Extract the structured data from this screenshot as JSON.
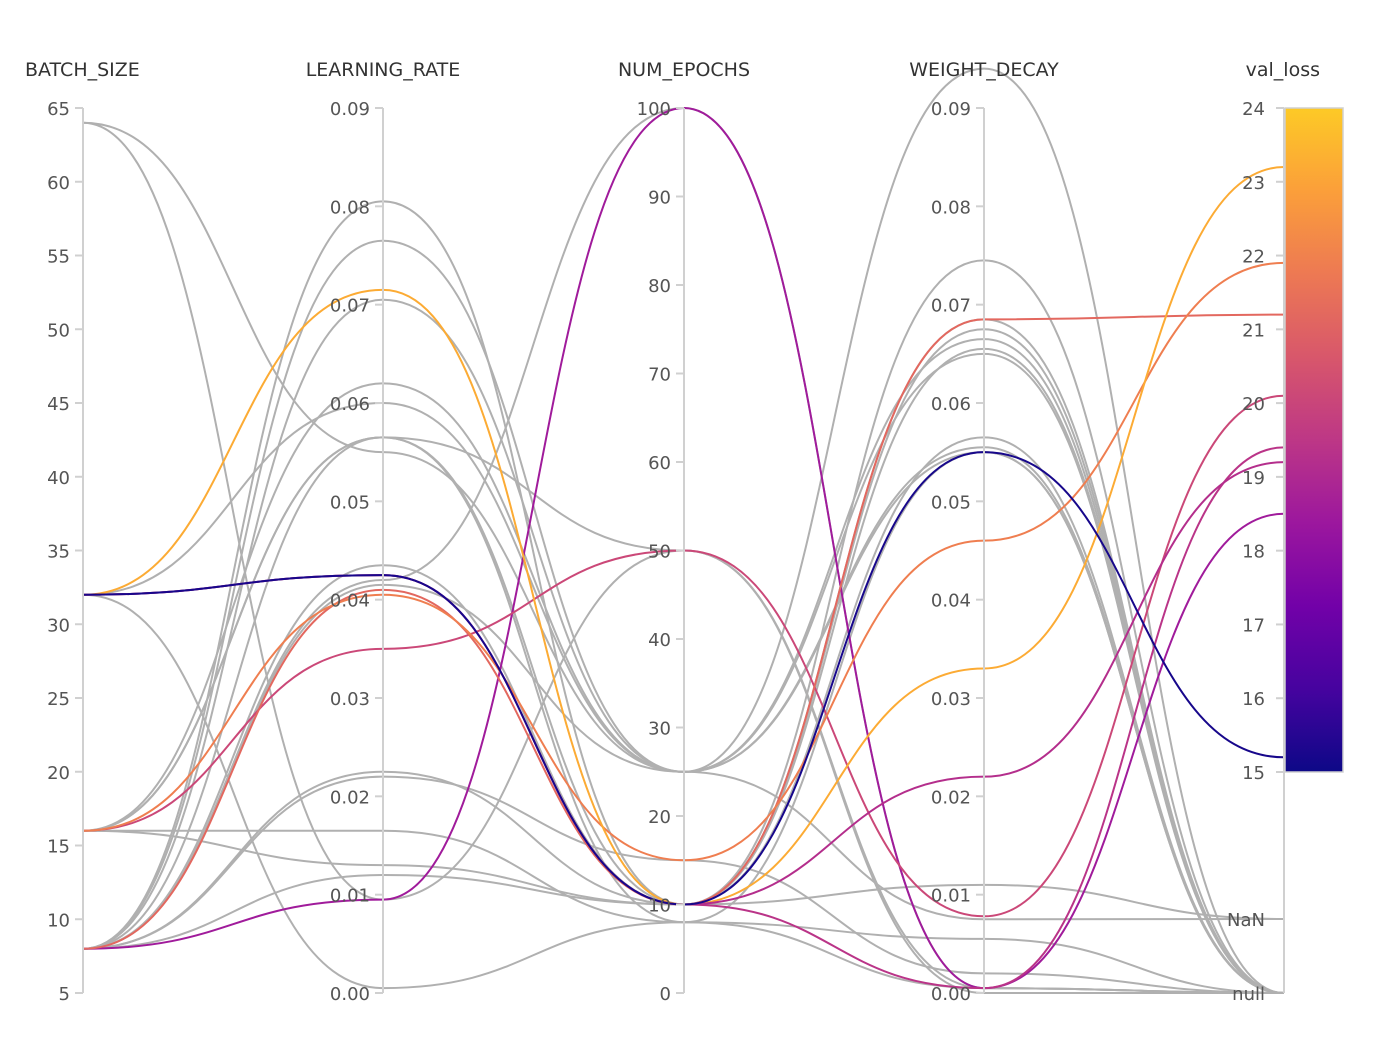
{
  "chart_data": {
    "type": "parallel_coordinates",
    "colorscale": {
      "name": "plasma",
      "colors": [
        "#0d0887",
        "#46039f",
        "#7201a8",
        "#9c179e",
        "#bd3786",
        "#d8576b",
        "#ed7953",
        "#fb9f3a",
        "#fdca26"
      ],
      "min": 15,
      "max": 24,
      "default_line_color": "#b0b0b0"
    },
    "axes": [
      {
        "key": "batch_size",
        "label": "BATCH_SIZE",
        "range": [
          5,
          65
        ],
        "ticks": [
          "5",
          "10",
          "15",
          "20",
          "25",
          "30",
          "35",
          "40",
          "45",
          "50",
          "55",
          "60",
          "65"
        ]
      },
      {
        "key": "learning_rate",
        "label": "LEARNING_RATE",
        "range": [
          0,
          0.09
        ],
        "ticks": [
          "0.00",
          "0.01",
          "0.02",
          "0.03",
          "0.04",
          "0.05",
          "0.06",
          "0.07",
          "0.08",
          "0.09"
        ]
      },
      {
        "key": "num_epochs",
        "label": "NUM_EPOCHS",
        "range": [
          0,
          100
        ],
        "ticks": [
          "0",
          "10",
          "20",
          "30",
          "40",
          "50",
          "60",
          "70",
          "80",
          "90",
          "100"
        ]
      },
      {
        "key": "weight_decay",
        "label": "WEIGHT_DECAY",
        "range": [
          0,
          0.09
        ],
        "ticks": [
          "0.00",
          "0.01",
          "0.02",
          "0.03",
          "0.04",
          "0.05",
          "0.06",
          "0.07",
          "0.08",
          "0.09"
        ]
      },
      {
        "key": "val_loss",
        "label": "val_loss",
        "range": [
          15,
          24
        ],
        "ticks": [
          "15",
          "16",
          "17",
          "18",
          "19",
          "20",
          "21",
          "22",
          "23",
          "24"
        ],
        "extra_ticks": [
          "NaN",
          "null"
        ]
      }
    ],
    "runs": [
      {
        "batch_size": 8,
        "learning_rate": 0.0095,
        "num_epochs": 100,
        "weight_decay": 0.0005,
        "val_loss": 18.5
      },
      {
        "batch_size": 32,
        "learning_rate": 0.0425,
        "num_epochs": 10,
        "weight_decay": 0.0005,
        "val_loss": 19.4
      },
      {
        "batch_size": 16,
        "learning_rate": 0.035,
        "num_epochs": 50,
        "weight_decay": 0.0078,
        "val_loss": 20.1
      },
      {
        "batch_size": 8,
        "learning_rate": 0.041,
        "num_epochs": 10,
        "weight_decay": 0.0685,
        "val_loss": 21.2
      },
      {
        "batch_size": 16,
        "learning_rate": 0.0405,
        "num_epochs": 15,
        "weight_decay": 0.046,
        "val_loss": 21.9
      },
      {
        "batch_size": 32,
        "learning_rate": 0.0715,
        "num_epochs": 10,
        "weight_decay": 0.033,
        "val_loss": 23.2
      },
      {
        "batch_size": 32,
        "learning_rate": 0.0425,
        "num_epochs": 10,
        "weight_decay": 0.022,
        "val_loss": 19.2
      },
      {
        "batch_size": 32,
        "learning_rate": 0.0425,
        "num_epochs": 10,
        "weight_decay": 0.055,
        "val_loss": 15.2
      },
      {
        "batch_size": 64,
        "learning_rate": 0.055,
        "num_epochs": 25,
        "weight_decay": 0.094,
        "val_loss": null
      },
      {
        "batch_size": 64,
        "learning_rate": 0.0095,
        "num_epochs": 50,
        "weight_decay": 0.0,
        "val_loss": null
      },
      {
        "batch_size": 32,
        "learning_rate": 0.06,
        "num_epochs": 25,
        "weight_decay": 0.065,
        "val_loss": null
      },
      {
        "batch_size": 16,
        "learning_rate": 0.013,
        "num_epochs": 10,
        "weight_decay": 0.011,
        "val_loss": "NaN"
      },
      {
        "batch_size": 8,
        "learning_rate": 0.012,
        "num_epochs": 10,
        "weight_decay": 0.0565,
        "val_loss": null
      },
      {
        "batch_size": 8,
        "learning_rate": 0.0805,
        "num_epochs": 10,
        "weight_decay": 0.0745,
        "val_loss": null
      },
      {
        "batch_size": 8,
        "learning_rate": 0.0765,
        "num_epochs": 25,
        "weight_decay": 0.0665,
        "val_loss": null
      },
      {
        "batch_size": 8,
        "learning_rate": 0.0705,
        "num_epochs": 25,
        "weight_decay": 0.0555,
        "val_loss": null
      },
      {
        "batch_size": 16,
        "learning_rate": 0.062,
        "num_epochs": 25,
        "weight_decay": 0.055,
        "val_loss": null
      },
      {
        "batch_size": 16,
        "learning_rate": 0.0565,
        "num_epochs": 50,
        "weight_decay": 0.0005,
        "val_loss": null
      },
      {
        "batch_size": 8,
        "learning_rate": 0.0565,
        "num_epochs": 10,
        "weight_decay": 0.0675,
        "val_loss": null
      },
      {
        "batch_size": 16,
        "learning_rate": 0.0565,
        "num_epochs": 8,
        "weight_decay": 0.055,
        "val_loss": null
      },
      {
        "batch_size": 8,
        "learning_rate": 0.0435,
        "num_epochs": 10,
        "weight_decay": 0.0655,
        "val_loss": null
      },
      {
        "batch_size": 8,
        "learning_rate": 0.0415,
        "num_epochs": 25,
        "weight_decay": 0.0075,
        "val_loss": "NaN"
      },
      {
        "batch_size": 16,
        "learning_rate": 0.0165,
        "num_epochs": 8,
        "weight_decay": 0.0055,
        "val_loss": null
      },
      {
        "batch_size": 8,
        "learning_rate": 0.0225,
        "num_epochs": 10,
        "weight_decay": 0.0685,
        "val_loss": null
      },
      {
        "batch_size": 32,
        "learning_rate": 0.0005,
        "num_epochs": 8,
        "weight_decay": 0.0005,
        "val_loss": null
      },
      {
        "batch_size": 8,
        "learning_rate": 0.022,
        "num_epochs": 15,
        "weight_decay": 0.002,
        "val_loss": null
      },
      {
        "batch_size": 8,
        "learning_rate": 0.042,
        "num_epochs": 100,
        "weight_decay": 0.0005,
        "val_loss": null
      }
    ]
  }
}
